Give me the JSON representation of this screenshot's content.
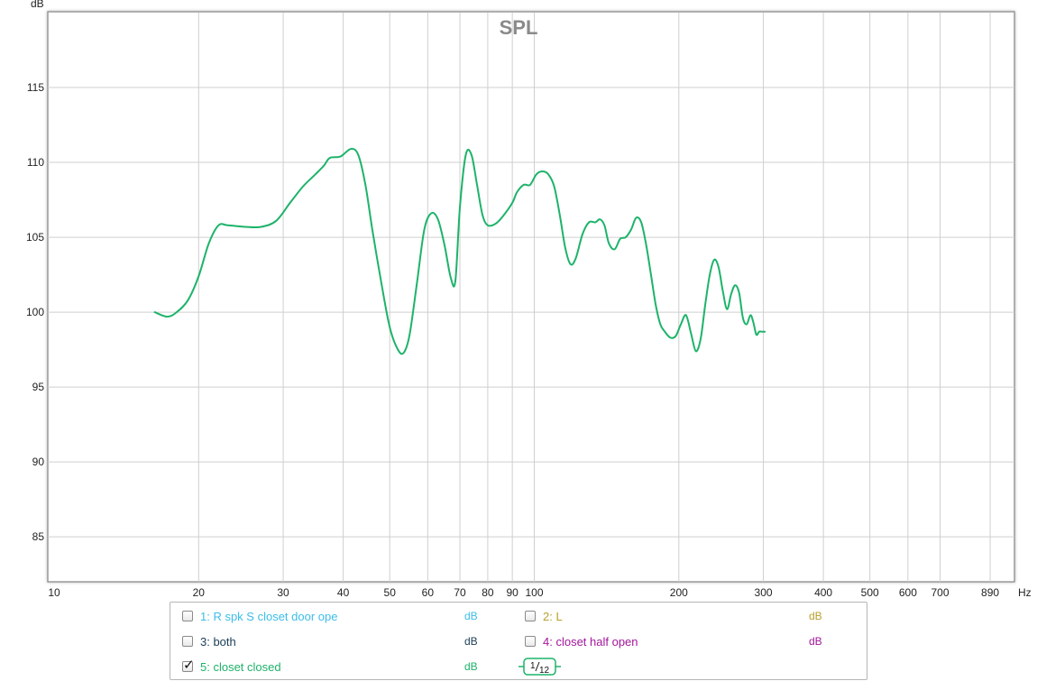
{
  "chart_data": {
    "type": "line",
    "title": "SPL",
    "ylabel": "dB",
    "xlabel": "Hz",
    "x_scale": "log",
    "xlim": [
      10,
      1000
    ],
    "ylim": [
      82,
      120
    ],
    "x_ticks": [
      {
        "v": 10,
        "t": "10"
      },
      {
        "v": 20,
        "t": "20"
      },
      {
        "v": 30,
        "t": "30"
      },
      {
        "v": 40,
        "t": "40"
      },
      {
        "v": 50,
        "t": "50"
      },
      {
        "v": 60,
        "t": "60"
      },
      {
        "v": 70,
        "t": "70"
      },
      {
        "v": 80,
        "t": "80"
      },
      {
        "v": 90,
        "t": "90"
      },
      {
        "v": 100,
        "t": "100"
      },
      {
        "v": 200,
        "t": "200"
      },
      {
        "v": 300,
        "t": "300"
      },
      {
        "v": 400,
        "t": "400"
      },
      {
        "v": 500,
        "t": "500"
      },
      {
        "v": 600,
        "t": "600"
      },
      {
        "v": 700,
        "t": "700"
      },
      {
        "v": 890,
        "t": "890"
      }
    ],
    "y_ticks": [
      85,
      90,
      95,
      100,
      105,
      110,
      115
    ],
    "grid": true,
    "series": [
      {
        "name": "5: closet closed",
        "color": "#1db36a",
        "x": [
          16.2,
          17.2,
          18.0,
          19.0,
          20.0,
          21.0,
          22.0,
          23.0,
          25.0,
          27.0,
          29.0,
          31.0,
          33.0,
          35.0,
          36.5,
          37.5,
          39.5,
          41.5,
          43.0,
          44.5,
          46.0,
          48.0,
          50.0,
          52.0,
          53.5,
          55.0,
          57.0,
          59.0,
          61.0,
          63.0,
          65.0,
          67.0,
          68.5,
          70.0,
          72.0,
          74.0,
          76.0,
          78.0,
          80.0,
          83.0,
          86.0,
          90.0,
          92.0,
          95.0,
          98.0,
          101.0,
          104.0,
          107.0,
          110.0,
          113.0,
          116.0,
          119.0,
          122.0,
          126.0,
          130.0,
          134.0,
          137.0,
          140.0,
          143.0,
          147.0,
          151.0,
          155.0,
          159.0,
          163.0,
          167.0,
          171.0,
          175.0,
          179.0,
          183.0,
          187.0,
          192.0,
          197.0,
          202.0,
          207.0,
          212.0,
          217.0,
          222.0,
          227.0,
          232.0,
          237.0,
          242.0,
          247.0,
          252.0,
          257.0,
          262.0,
          267.0,
          272.0,
          277.0,
          282.0,
          286.0,
          290.0,
          294.0,
          298.0,
          302.0
        ],
        "y": [
          100.0,
          99.7,
          100.0,
          100.8,
          102.4,
          104.6,
          105.8,
          105.8,
          105.7,
          105.7,
          106.1,
          107.3,
          108.4,
          109.2,
          109.8,
          110.3,
          110.4,
          110.9,
          110.5,
          108.5,
          105.5,
          102.0,
          99.0,
          97.5,
          97.3,
          98.5,
          102.0,
          105.5,
          106.6,
          106.2,
          104.5,
          102.3,
          102.1,
          107.0,
          110.5,
          110.5,
          108.5,
          106.5,
          105.8,
          105.9,
          106.4,
          107.3,
          108.0,
          108.5,
          108.5,
          109.2,
          109.4,
          109.2,
          108.4,
          106.5,
          104.3,
          103.2,
          103.6,
          105.2,
          106.0,
          106.0,
          106.2,
          105.8,
          104.6,
          104.2,
          104.9,
          105.0,
          105.5,
          106.3,
          106.0,
          104.5,
          102.5,
          100.5,
          99.2,
          98.7,
          98.3,
          98.4,
          99.2,
          99.8,
          98.6,
          97.4,
          98.2,
          100.5,
          102.5,
          103.5,
          103.0,
          101.4,
          100.2,
          101.2,
          101.8,
          101.3,
          99.6,
          99.2,
          99.8,
          99.3,
          98.5,
          98.7,
          98.7,
          98.7
        ]
      }
    ]
  },
  "legend": [
    {
      "id": "1",
      "label": "1: R spk S closet door ope",
      "unit": "dB",
      "checked": false,
      "color": "#3cbde8"
    },
    {
      "id": "2",
      "label": "2: L",
      "unit": "dB",
      "checked": false,
      "color": "#b8a02c"
    },
    {
      "id": "3",
      "label": "3: both",
      "unit": "dB",
      "checked": false,
      "color": "#1c3d56"
    },
    {
      "id": "4",
      "label": "4: closet half open",
      "unit": "dB",
      "checked": false,
      "color": "#a2169b"
    },
    {
      "id": "5",
      "label": "5: closet closed",
      "unit": "dB",
      "checked": true,
      "color": "#1db36a"
    }
  ],
  "smoothing": {
    "num": "1",
    "den": "12"
  }
}
